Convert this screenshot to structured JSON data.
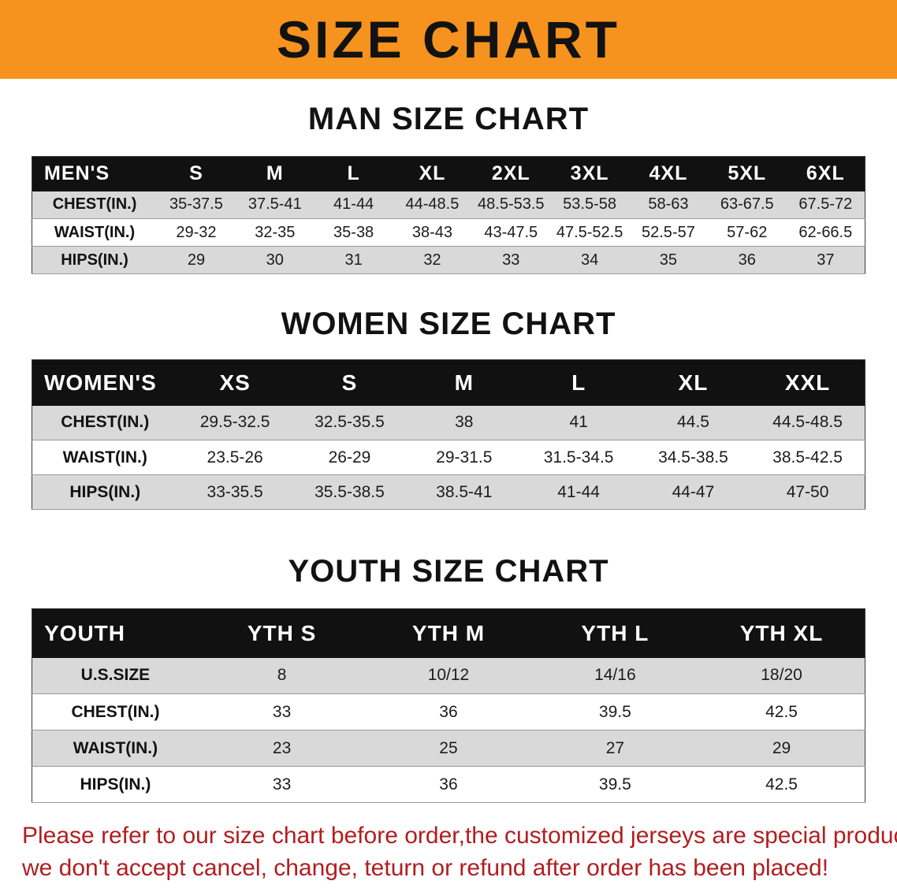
{
  "banner": {
    "title": "SIZE CHART"
  },
  "colors": {
    "banner_orange": "#F6921E",
    "table_header_black": "#111111",
    "row_stripe_gray": "#D9D9D9",
    "disclaimer_red": "#B01E20"
  },
  "sections": {
    "man": {
      "heading": "MAN SIZE CHART",
      "table": {
        "header": [
          "MEN'S",
          "S",
          "M",
          "L",
          "XL",
          "2XL",
          "3XL",
          "4XL",
          "5XL",
          "6XL"
        ],
        "rows": [
          [
            "CHEST(IN.)",
            "35-37.5",
            "37.5-41",
            "41-44",
            "44-48.5",
            "48.5-53.5",
            "53.5-58",
            "58-63",
            "63-67.5",
            "67.5-72"
          ],
          [
            "WAIST(IN.)",
            "29-32",
            "32-35",
            "35-38",
            "38-43",
            "43-47.5",
            "47.5-52.5",
            "52.5-57",
            "57-62",
            "62-66.5"
          ],
          [
            "HIPS(IN.)",
            "29",
            "30",
            "31",
            "32",
            "33",
            "34",
            "35",
            "36",
            "37"
          ]
        ]
      }
    },
    "women": {
      "heading": "WOMEN SIZE CHART",
      "table": {
        "header": [
          "WOMEN'S",
          "XS",
          "S",
          "M",
          "L",
          "XL",
          "XXL"
        ],
        "rows": [
          [
            "CHEST(IN.)",
            "29.5-32.5",
            "32.5-35.5",
            "38",
            "41",
            "44.5",
            "44.5-48.5"
          ],
          [
            "WAIST(IN.)",
            "23.5-26",
            "26-29",
            "29-31.5",
            "31.5-34.5",
            "34.5-38.5",
            "38.5-42.5"
          ],
          [
            "HIPS(IN.)",
            "33-35.5",
            "35.5-38.5",
            "38.5-41",
            "41-44",
            "44-47",
            "47-50"
          ]
        ]
      }
    },
    "youth": {
      "heading": "YOUTH SIZE CHART",
      "table": {
        "header": [
          "YOUTH",
          "YTH S",
          "YTH M",
          "YTH L",
          "YTH XL"
        ],
        "rows": [
          [
            "U.S.SIZE",
            "8",
            "10/12",
            "14/16",
            "18/20"
          ],
          [
            "CHEST(IN.)",
            "33",
            "36",
            "39.5",
            "42.5"
          ],
          [
            "WAIST(IN.)",
            "23",
            "25",
            "27",
            "29"
          ],
          [
            "HIPS(IN.)",
            "33",
            "36",
            "39.5",
            "42.5"
          ]
        ]
      }
    }
  },
  "disclaimer": {
    "line1": "Please refer to our size chart before order,the customized jerseys are special products,",
    "line2": "we don't accept cancel, change, teturn or refund after order has been placed!"
  }
}
